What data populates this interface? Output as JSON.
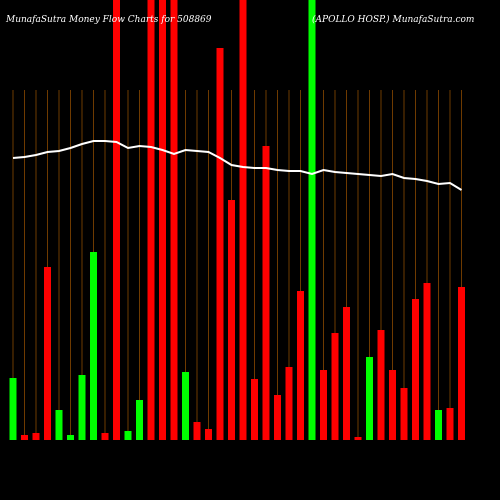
{
  "chart_data": {
    "type": "bar",
    "title": "MunafaSutra  Money Flow  Charts for 508869",
    "subtitle": "(APOLLO HOSP.) MunafaSutra.com",
    "ylim": [
      0,
      440
    ],
    "series": [
      {
        "name": "Money Flow",
        "colors": [
          "#00ff00",
          "#ff0000",
          "#ff0000",
          "#ff0000",
          "#00ff00",
          "#00ff00",
          "#00ff00",
          "#00ff00",
          "#ff0000",
          "#ff0000",
          "#00ff00",
          "#00ff00",
          "#ff0000",
          "#ff0000",
          "#ff0000",
          "#00ff00",
          "#ff0000",
          "#ff0000",
          "#ff0000",
          "#ff0000",
          "#ff0000",
          "#ff0000",
          "#ff0000",
          "#ff0000",
          "#ff0000",
          "#ff0000",
          "#00ff00",
          "#ff0000",
          "#ff0000",
          "#ff0000",
          "#ff0000",
          "#00ff00",
          "#ff0000",
          "#ff0000",
          "#ff0000",
          "#ff0000",
          "#ff0000",
          "#00ff00",
          "#ff0000",
          "#ff0000"
        ],
        "values": [
          62,
          5,
          7,
          173,
          30,
          5,
          65,
          188,
          7,
          440,
          9,
          40,
          440,
          440,
          440,
          68,
          18,
          11,
          392,
          240,
          440,
          61,
          294,
          45,
          73,
          149,
          440,
          70,
          107,
          133,
          3,
          83,
          110,
          70,
          52,
          141,
          157,
          30,
          32,
          153
        ]
      },
      {
        "name": "Price",
        "type": "line",
        "color": "#ffffff",
        "values": [
          282,
          283,
          285,
          288,
          289,
          292,
          296,
          299,
          299,
          298,
          292,
          294,
          293,
          290,
          286,
          290,
          289,
          288,
          282,
          275,
          273,
          272,
          272,
          270,
          269,
          269,
          266,
          270,
          268,
          267,
          266,
          265,
          264,
          266,
          262,
          261,
          259,
          256,
          257,
          250
        ]
      }
    ]
  }
}
